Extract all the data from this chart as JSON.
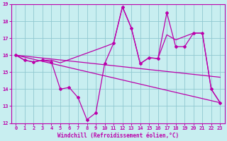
{
  "xlabel": "Windchill (Refroidissement éolien,°C)",
  "bg_color": "#c8eef0",
  "line_color": "#bb00aa",
  "grid_color": "#90c8d0",
  "xlim": [
    -0.5,
    23.5
  ],
  "ylim": [
    12,
    19
  ],
  "yticks": [
    12,
    13,
    14,
    15,
    16,
    17,
    18,
    19
  ],
  "xticks": [
    0,
    1,
    2,
    3,
    4,
    5,
    6,
    7,
    8,
    9,
    10,
    11,
    12,
    13,
    14,
    15,
    16,
    17,
    18,
    19,
    20,
    21,
    22,
    23
  ],
  "series_zigzag": {
    "x": [
      0,
      1,
      2,
      3,
      4,
      5,
      6,
      7,
      8,
      9,
      10,
      11,
      12,
      13,
      14,
      15,
      16,
      17,
      18,
      19,
      20,
      21,
      22,
      23
    ],
    "y": [
      16,
      15.7,
      15.6,
      15.7,
      15.6,
      14.0,
      14.1,
      13.5,
      12.2,
      12.6,
      15.5,
      16.7,
      18.85,
      17.6,
      15.5,
      15.85,
      15.8,
      18.5,
      16.5,
      16.5,
      17.3,
      17.3,
      14.0,
      13.2
    ]
  },
  "series_upper_envelope": {
    "x": [
      0,
      1,
      2,
      3,
      4,
      5,
      10,
      11,
      12,
      13,
      14,
      15,
      16,
      17,
      18,
      19,
      20,
      21,
      22,
      23
    ],
    "y": [
      16,
      15.7,
      15.6,
      15.7,
      15.7,
      15.55,
      16.5,
      16.7,
      18.85,
      17.6,
      15.5,
      15.85,
      15.8,
      17.2,
      16.9,
      17.1,
      17.3,
      17.3,
      14.0,
      13.2
    ]
  },
  "series_mid": {
    "x": [
      0,
      23
    ],
    "y": [
      16,
      14.7
    ]
  },
  "series_lower": {
    "x": [
      0,
      23
    ],
    "y": [
      16,
      13.2
    ]
  }
}
